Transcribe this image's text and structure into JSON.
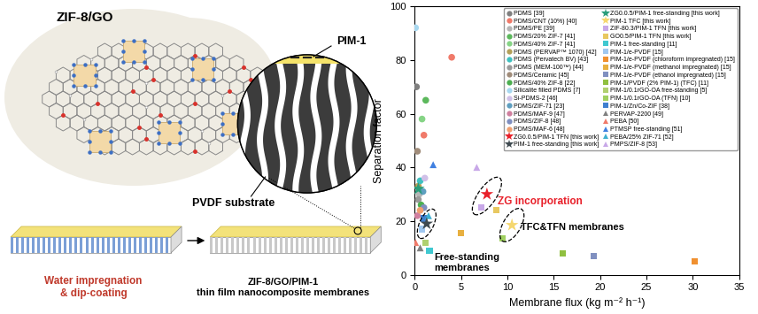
{
  "chart_data": {
    "type": "scatter",
    "x_label": "Membrane flux (kg m⁻² h⁻¹)",
    "y_label": "Separation factor",
    "xlim": [
      0,
      35
    ],
    "xticks": [
      0,
      5,
      10,
      15,
      20,
      25,
      30,
      35
    ],
    "ylim": [
      0,
      100
    ],
    "yticks": [
      0,
      20,
      40,
      60,
      80,
      100
    ],
    "legend": "upper right",
    "series": [
      {
        "name": "PDMS [39]",
        "color": "#7f7f7f",
        "marker": "circle",
        "x": [
          0.2
        ],
        "values": [
          70
        ]
      },
      {
        "name": "PDMS/CNT (10%) [40]",
        "color": "#f07a6a",
        "marker": "circle",
        "x": [
          4.0,
          1.0
        ],
        "values": [
          81,
          52
        ]
      },
      {
        "name": "PDMS/PE [39]",
        "color": "#b5b5b5",
        "marker": "circle",
        "x": [
          0.5
        ],
        "values": [
          30
        ]
      },
      {
        "name": "PDMS/20% ZIF-7 [41]",
        "color": "#5cb85c",
        "marker": "circle",
        "x": [
          1.2
        ],
        "values": [
          65
        ]
      },
      {
        "name": "PDMS/40% ZIF-7 [41]",
        "color": "#86d486",
        "marker": "circle",
        "x": [
          0.8
        ],
        "values": [
          58
        ]
      },
      {
        "name": "PDMS (PERVAP™ 1070) [42]",
        "color": "#b3a05a",
        "marker": "circle",
        "x": [
          0.4
        ],
        "values": [
          33
        ]
      },
      {
        "name": "PDMS (Pervatech BV) [43]",
        "color": "#3fc1c0",
        "marker": "circle",
        "x": [
          0.6
        ],
        "values": [
          35
        ]
      },
      {
        "name": "PDMS (MEM-100™) [44]",
        "color": "#9a9a9a",
        "marker": "circle",
        "x": [
          0.4
        ],
        "values": [
          28
        ]
      },
      {
        "name": "PDMS/Ceramic [45]",
        "color": "#a08c7a",
        "marker": "circle",
        "x": [
          0.3
        ],
        "values": [
          46
        ]
      },
      {
        "name": "PDMS/40% ZIF-8 [22]",
        "color": "#4caf50",
        "marker": "circle",
        "x": [
          0.7
        ],
        "values": [
          26
        ]
      },
      {
        "name": "Silicalite filled PDMS [7]",
        "color": "#a8d8f0",
        "marker": "circle",
        "x": [
          0.1
        ],
        "values": [
          92
        ]
      },
      {
        "name": "Si-PDMS-2 [46]",
        "color": "#d0c0e8",
        "marker": "circle",
        "x": [
          1.1
        ],
        "values": [
          36
        ]
      },
      {
        "name": "PDMS/ZIF-71 [23]",
        "color": "#5f9fc0",
        "marker": "circle",
        "x": [
          0.9
        ],
        "values": [
          31
        ]
      },
      {
        "name": "PDMS/MAF-9 [47]",
        "color": "#d0809f",
        "marker": "circle",
        "x": [
          0.3
        ],
        "values": [
          22
        ]
      },
      {
        "name": "PDMS/ZIF-8 [48]",
        "color": "#7f8fc0",
        "marker": "circle",
        "x": [
          1.0
        ],
        "values": [
          25
        ]
      },
      {
        "name": "PDMS/MAF-6 [48]",
        "color": "#f0a070",
        "marker": "circle",
        "x": [
          0.6
        ],
        "values": [
          24
        ]
      },
      {
        "name": "ZG0.0.5/PIM-1 TFN [this work]",
        "color": "#e8202a",
        "marker": "star",
        "x": [
          7.8
        ],
        "values": [
          30
        ],
        "annotation": "ZG incorporation"
      },
      {
        "name": "PIM-1 free-standing [this work]",
        "color": "#3f4a50",
        "marker": "star",
        "x": [
          1.3
        ],
        "values": [
          19
        ],
        "annotation": "Free-standing\nmembranes"
      },
      {
        "name": "ZG0.0.5/PIM-1 free-standing [this work]",
        "color": "#2a9d7a",
        "marker": "star",
        "x": [
          0.4
        ],
        "values": [
          32
        ]
      },
      {
        "name": "PIM-1 TFC [this work]",
        "color": "#f5d76e",
        "marker": "star",
        "x": [
          10.5
        ],
        "values": [
          18.5
        ],
        "annotation": "TFC&TFN membranes"
      },
      {
        "name": "ZIF-80.3/PIM-1 TFN [this work]",
        "color": "#c8a8e8",
        "marker": "square",
        "x": [
          7.2
        ],
        "values": [
          25
        ]
      },
      {
        "name": "GO0.5/PIM-1 TFN [this work]",
        "color": "#e8c860",
        "marker": "square",
        "x": [
          8.8
        ],
        "values": [
          24
        ]
      },
      {
        "name": "PIM-1 free-standing [11]",
        "color": "#40c8d0",
        "marker": "square",
        "x": [
          1.6
        ],
        "values": [
          9
        ]
      },
      {
        "name": "PIM-1/e-PVDF [15]",
        "color": "#a0c8f0",
        "marker": "square",
        "x": [
          0.8
        ],
        "values": [
          17
        ]
      },
      {
        "name": "PIM-1/e-PVDF (chloroform impregnated) [15]",
        "color": "#f09030",
        "marker": "square",
        "x": [
          30.2
        ],
        "values": [
          5
        ]
      },
      {
        "name": "PIM-1/e-PVDF (methanol impregnated) [15]",
        "color": "#e8b040",
        "marker": "square",
        "x": [
          5.0
        ],
        "values": [
          15.5
        ]
      },
      {
        "name": "PIM-1/e-PVDF (ethanol impregnated) [15]",
        "color": "#8090c0",
        "marker": "square",
        "x": [
          19.3
        ],
        "values": [
          7
        ]
      },
      {
        "name": "PIM-1/PVDF (2% PIM-1) (TFC) [11]",
        "color": "#90c040",
        "marker": "square",
        "x": [
          16.0
        ],
        "values": [
          8
        ]
      },
      {
        "name": "PIM-1/0.1rGO-OA free-standing [5]",
        "color": "#b0d070",
        "marker": "square",
        "x": [
          1.2
        ],
        "values": [
          12
        ]
      },
      {
        "name": "PIM-1/0.1rGO-OA (TFN) [10]",
        "color": "#a0d060",
        "marker": "square",
        "x": [
          9.5
        ],
        "values": [
          13.5
        ]
      },
      {
        "name": "PIM-1/Zn/Co-ZIF [38]",
        "color": "#4080d0",
        "marker": "square",
        "x": [
          1.0
        ],
        "values": [
          21
        ]
      },
      {
        "name": "PERVAP-2200 [49]",
        "color": "#808080",
        "marker": "triangle",
        "x": [
          0.6
        ],
        "values": [
          10
        ]
      },
      {
        "name": "PEBA [50]",
        "color": "#f07a6a",
        "marker": "triangle",
        "x": [
          0.1
        ],
        "values": [
          12
        ]
      },
      {
        "name": "PTMSP free-standing [51]",
        "color": "#4080e0",
        "marker": "triangle",
        "x": [
          2.0
        ],
        "values": [
          41
        ]
      },
      {
        "name": "PEBA/25% ZIF-71 [52]",
        "color": "#40b0d0",
        "marker": "triangle",
        "x": [
          1.5
        ],
        "values": [
          22
        ]
      },
      {
        "name": "PMPS/ZIF-8 [53]",
        "color": "#c8a8e8",
        "marker": "triangle",
        "x": [
          6.7
        ],
        "values": [
          40
        ]
      }
    ]
  },
  "diagram": {
    "material": "ZIF-8/GO",
    "layer_label": "PIM-1",
    "substrate_label": "PVDF substrate",
    "process": "Water impregnation\n& dip-coating",
    "product": "ZIF-8/GO/PIM-1\nthin film nanocomposite membranes"
  }
}
